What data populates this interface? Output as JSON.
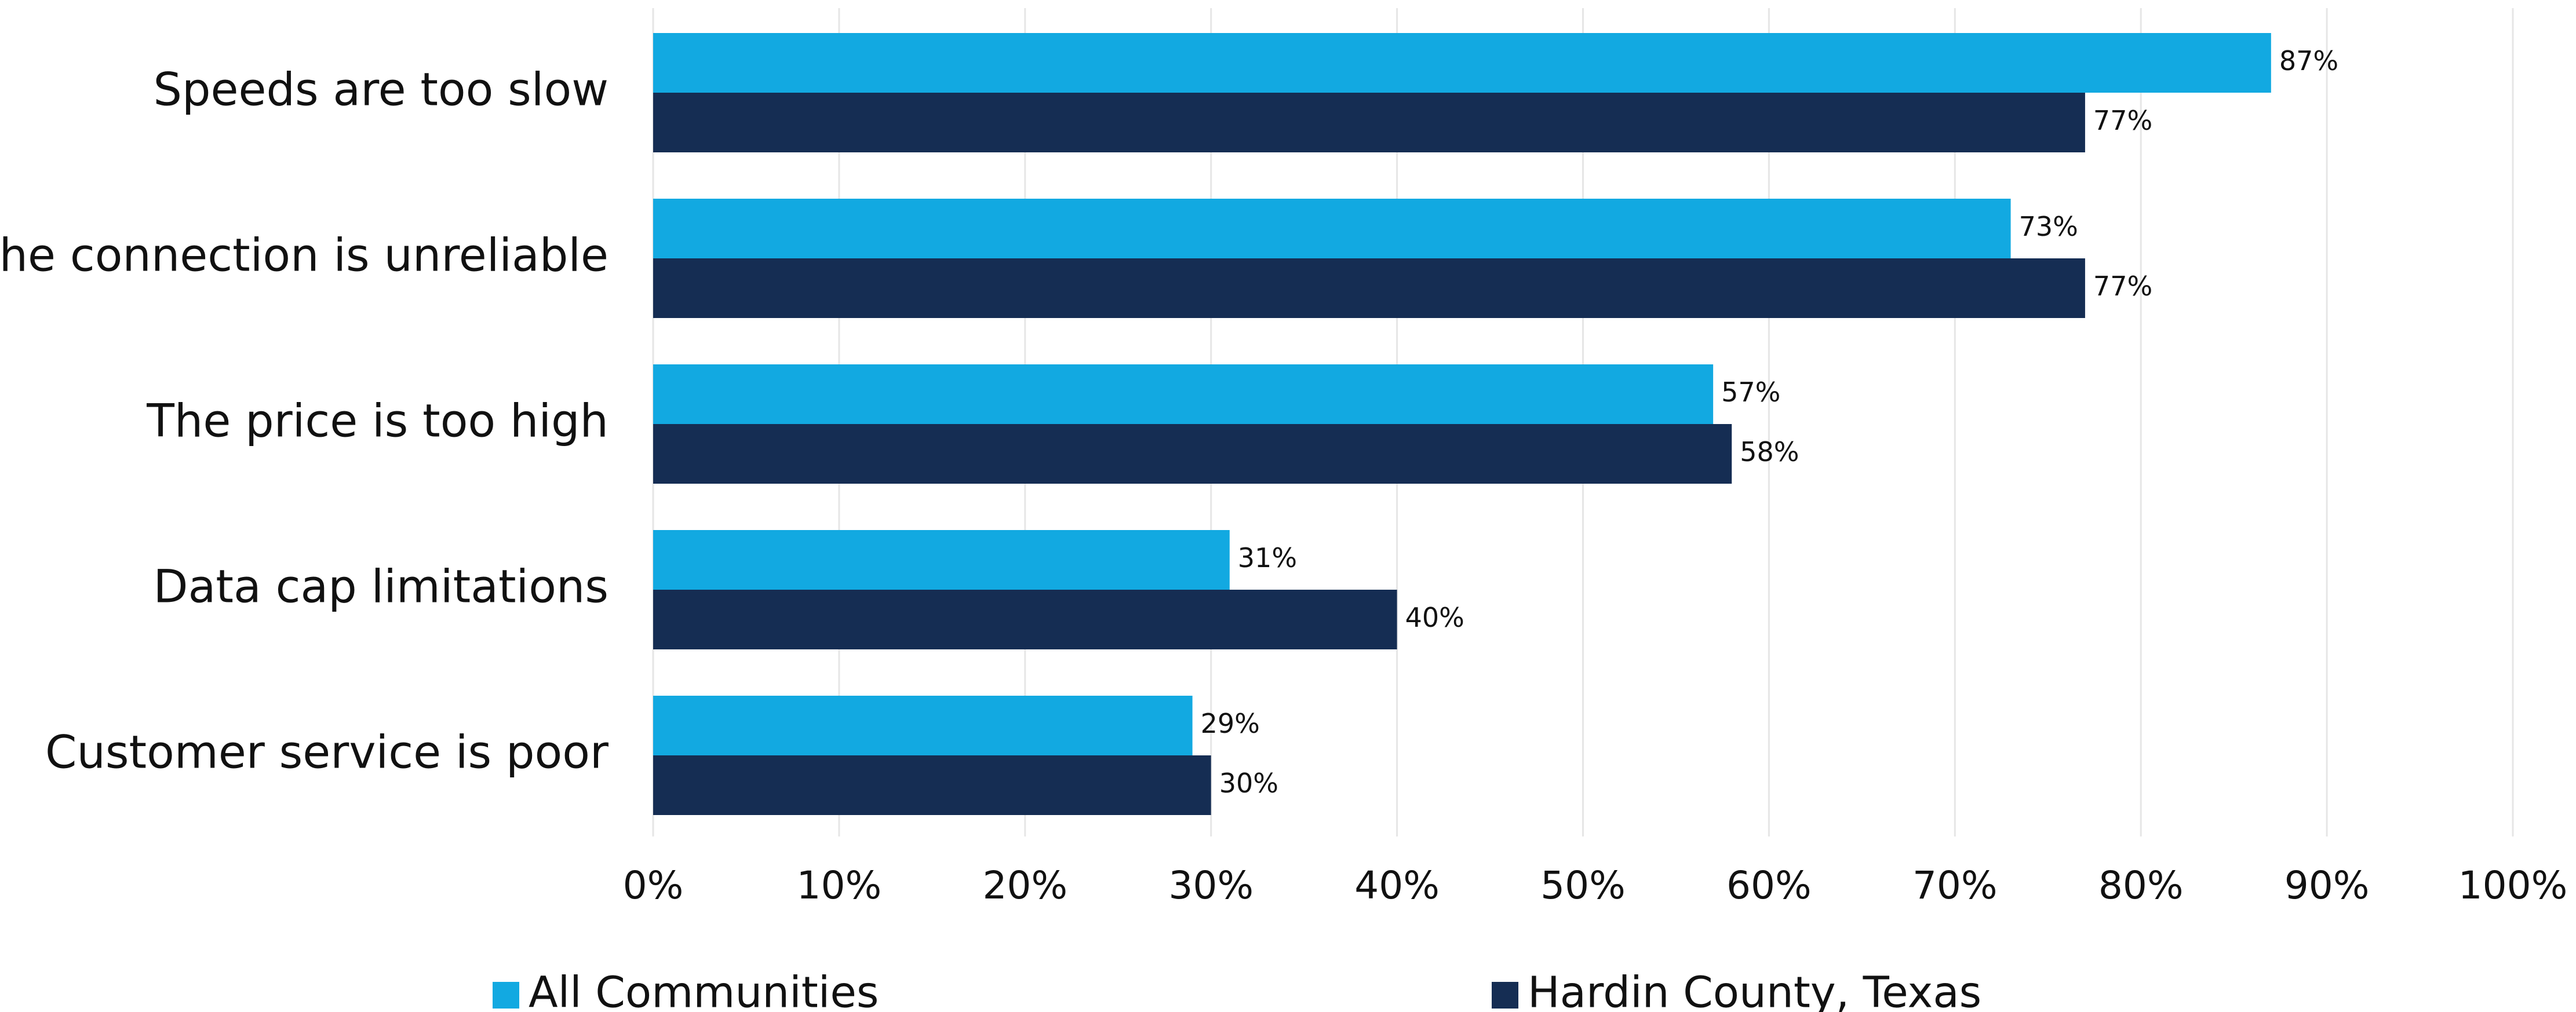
{
  "chart_data": {
    "type": "barh",
    "categories": [
      "Speeds are too slow",
      "The connection is unreliable",
      "The price is too high",
      "Data cap limitations",
      "Customer service is poor"
    ],
    "series": [
      {
        "name": "All Communities",
        "color": "#12a9e1",
        "values": [
          87,
          73,
          57,
          31,
          29
        ],
        "value_labels": [
          "87%",
          "73%",
          "57%",
          "31%",
          "29%"
        ]
      },
      {
        "name": "Hardin County, Texas",
        "color": "#152d53",
        "values": [
          77,
          77,
          58,
          40,
          30
        ],
        "value_labels": [
          "77%",
          "77%",
          "58%",
          "40%",
          "30%"
        ]
      }
    ],
    "xlim": [
      0,
      100
    ],
    "xticks": [
      {
        "value": 0,
        "label": "0%"
      },
      {
        "value": 10,
        "label": "10%"
      },
      {
        "value": 20,
        "label": "20%"
      },
      {
        "value": 30,
        "label": "30%"
      },
      {
        "value": 40,
        "label": "40%"
      },
      {
        "value": 50,
        "label": "50%"
      },
      {
        "value": 60,
        "label": "60%"
      },
      {
        "value": 70,
        "label": "70%"
      },
      {
        "value": 80,
        "label": "80%"
      },
      {
        "value": 90,
        "label": "90%"
      },
      {
        "value": 100,
        "label": "100%"
      }
    ],
    "grid": true,
    "legend": "bottom"
  }
}
